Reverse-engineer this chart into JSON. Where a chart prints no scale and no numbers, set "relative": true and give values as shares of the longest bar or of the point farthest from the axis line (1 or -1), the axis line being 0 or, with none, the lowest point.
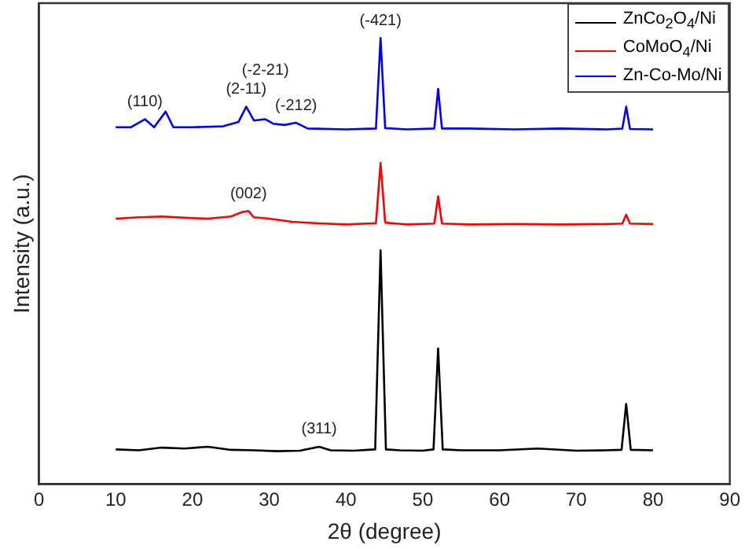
{
  "chart_data": {
    "type": "line",
    "xlabel": "2θ (degree)",
    "ylabel": "Intensity (a.u.)",
    "relative": true,
    "xlim": [
      0,
      90
    ],
    "xticks": [
      0,
      10,
      20,
      30,
      40,
      50,
      60,
      70,
      80,
      90
    ],
    "legend": "top right",
    "marker": "none",
    "series": [
      {
        "name": "ZnCo$_{2}$O$_{4}$/Ni",
        "color": "#000000",
        "x": [
          10,
          13,
          16,
          19,
          22,
          25,
          28,
          31,
          34,
          36.5,
          38,
          41,
          43.8,
          44.5,
          45.2,
          47,
          50,
          51.4,
          52,
          52.6,
          55,
          60,
          65,
          70,
          74,
          75.9,
          76.5,
          77.1,
          80
        ],
        "values": [
          0.078,
          0.076,
          0.082,
          0.08,
          0.084,
          0.077,
          0.076,
          0.074,
          0.075,
          0.084,
          0.076,
          0.075,
          0.078,
          0.524,
          0.078,
          0.076,
          0.075,
          0.078,
          0.304,
          0.078,
          0.076,
          0.076,
          0.08,
          0.075,
          0.076,
          0.077,
          0.18,
          0.077,
          0.076
        ]
      },
      {
        "name": "CoMoO$_{4}$/Ni",
        "color": "#ff0000",
        "x": [
          10,
          13,
          16,
          19,
          22,
          25,
          26.5,
          27.3,
          28,
          30,
          33,
          36,
          40,
          43.9,
          44.5,
          45.1,
          48,
          51.5,
          52,
          52.5,
          56,
          62,
          68,
          74,
          76,
          76.5,
          77,
          80
        ],
        "values": [
          0.595,
          0.598,
          0.6,
          0.597,
          0.595,
          0.6,
          0.61,
          0.612,
          0.598,
          0.595,
          0.588,
          0.585,
          0.582,
          0.585,
          0.72,
          0.586,
          0.582,
          0.584,
          0.645,
          0.584,
          0.582,
          0.583,
          0.582,
          0.583,
          0.584,
          0.604,
          0.584,
          0.583
        ]
      },
      {
        "name": "Zn-Co-Mo/Ni",
        "color": "#0000ff",
        "x": [
          10,
          12,
          13.8,
          15,
          16.5,
          17.5,
          20,
          24,
          26,
          27,
          28,
          29.5,
          30.5,
          32,
          33.5,
          35,
          40,
          43.9,
          44.5,
          45.1,
          48,
          51.5,
          52,
          52.5,
          56,
          62,
          68,
          74,
          76,
          76.5,
          77,
          80
        ],
        "values": [
          0.8,
          0.8,
          0.818,
          0.8,
          0.835,
          0.8,
          0.8,
          0.802,
          0.812,
          0.846,
          0.815,
          0.818,
          0.808,
          0.805,
          0.81,
          0.797,
          0.795,
          0.797,
          1,
          0.798,
          0.795,
          0.797,
          0.886,
          0.797,
          0.797,
          0.795,
          0.797,
          0.795,
          0.797,
          0.846,
          0.796,
          0.795
        ]
      }
    ],
    "annotations": [
      {
        "text": "(110)",
        "x": 13.8,
        "y": 0.818
      },
      {
        "text": "(2-11)",
        "x": 27,
        "y": 0.846
      },
      {
        "text": "(-2-21)",
        "x": 29.5,
        "y": 0.818
      },
      {
        "text": "(-212)",
        "x": 33.5,
        "y": 0.81
      },
      {
        "text": "(-421)",
        "x": 44.5,
        "y": 1
      },
      {
        "text": "(002)",
        "x": 27.3,
        "y": 0.612
      },
      {
        "text": "(311)",
        "x": 36.5,
        "y": 0.084
      }
    ]
  }
}
